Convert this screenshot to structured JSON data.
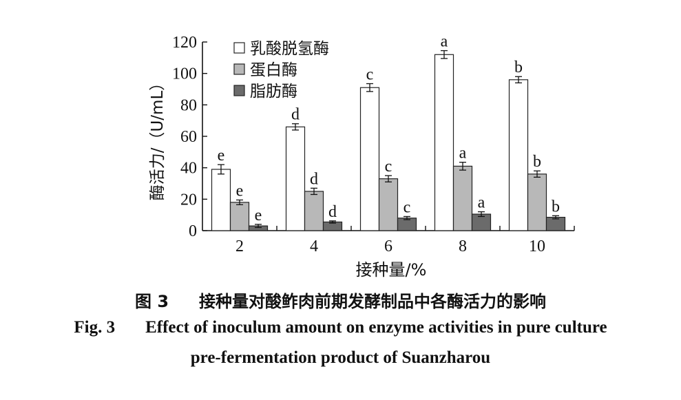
{
  "chart_data": {
    "type": "bar",
    "categories": [
      "2",
      "4",
      "6",
      "8",
      "10"
    ],
    "xlabel": "接种量/%",
    "ylabel": "酶活力/（U/mL）",
    "ylim": [
      0,
      120
    ],
    "yticks": [
      0,
      20,
      40,
      60,
      80,
      100,
      120
    ],
    "grid": false,
    "legend_position": "top-left",
    "series": [
      {
        "name": "乳酸脱氢酶",
        "color": "#ffffff",
        "values": [
          39,
          66,
          91,
          112,
          96
        ],
        "errors": [
          3,
          2,
          2.5,
          2.5,
          2
        ],
        "letters": [
          "e",
          "d",
          "c",
          "a",
          "b"
        ]
      },
      {
        "name": "蛋白酶",
        "color": "#b8b8b8",
        "values": [
          18,
          25,
          33,
          41,
          36
        ],
        "errors": [
          1.5,
          2,
          2,
          2.5,
          2
        ],
        "letters": [
          "e",
          "d",
          "c",
          "a",
          "b"
        ]
      },
      {
        "name": "脂肪酶",
        "color": "#6b6b6b",
        "values": [
          3,
          5.5,
          8,
          10.5,
          8.5
        ],
        "errors": [
          1,
          0.7,
          1,
          1.5,
          1
        ],
        "letters": [
          "e",
          "d",
          "c",
          "a",
          "b"
        ]
      }
    ]
  },
  "caption": {
    "zh_label": "图 3",
    "zh_title": "接种量对酸鲊肉前期发酵制品中各酶活力的影响",
    "en_label": "Fig. 3",
    "en_title_line1": "Effect of inoculum amount on enzyme activities in pure culture",
    "en_title_line2": "pre-fermentation product of Suanzharou"
  }
}
